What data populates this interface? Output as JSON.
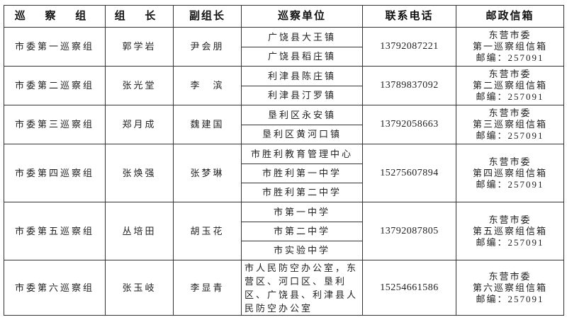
{
  "headers": {
    "group": "巡 察 组",
    "leader": "组 长",
    "deputy": "副组长",
    "units": "巡察单位",
    "phone": "联系电话",
    "mailbox": "邮政信箱"
  },
  "rows": [
    {
      "group": "市委第一巡察组",
      "leader": "郭学岩",
      "deputy": "尹会朋",
      "units": [
        "广饶县大王镇",
        "广饶县稻庄镇"
      ],
      "phone": "13792087221",
      "mailbox": [
        "东营市委",
        "第一巡察组信箱",
        "邮编：257091"
      ]
    },
    {
      "group": "市委第二巡察组",
      "leader": "张光堂",
      "deputy": "李　滨",
      "units": [
        "利津县陈庄镇",
        "利津县汀罗镇"
      ],
      "phone": "13789837092",
      "mailbox": [
        "东营市委",
        "第二巡察组信箱",
        "邮编：257091"
      ]
    },
    {
      "group": "市委第三巡察组",
      "leader": "郑月成",
      "deputy": "魏建国",
      "units": [
        "垦利区永安镇",
        "垦利区黄河口镇"
      ],
      "phone": "13792058663",
      "mailbox": [
        "东营市委",
        "第三巡察组信箱",
        "邮编：257091"
      ]
    },
    {
      "group": "市委第四巡察组",
      "leader": "张焕强",
      "deputy": "张梦琳",
      "units": [
        "市胜利教育管理中心",
        "市胜利第一中学",
        "市胜利第二中学"
      ],
      "phone": "15275607894",
      "mailbox": [
        "东营市委",
        "第四巡察组信箱",
        "邮编：257091"
      ]
    },
    {
      "group": "市委第五巡察组",
      "leader": "丛培田",
      "deputy": "胡玉花",
      "units": [
        "市第一中学",
        "市第二中学",
        "市实验中学"
      ],
      "phone": "13792087805",
      "mailbox": [
        "东营市委",
        "第五巡察组信箱",
        "邮编：257091"
      ]
    },
    {
      "group": "市委第六巡察组",
      "leader": "张玉岐",
      "deputy": "李显青",
      "units": [
        "市人民防空办公室，东营区、河口区、垦利区、广饶县、利津县人民防空办公室"
      ],
      "phone": "15254661586",
      "mailbox": [
        "东营市委",
        "第六巡察组信箱",
        "邮编：257091"
      ]
    }
  ]
}
